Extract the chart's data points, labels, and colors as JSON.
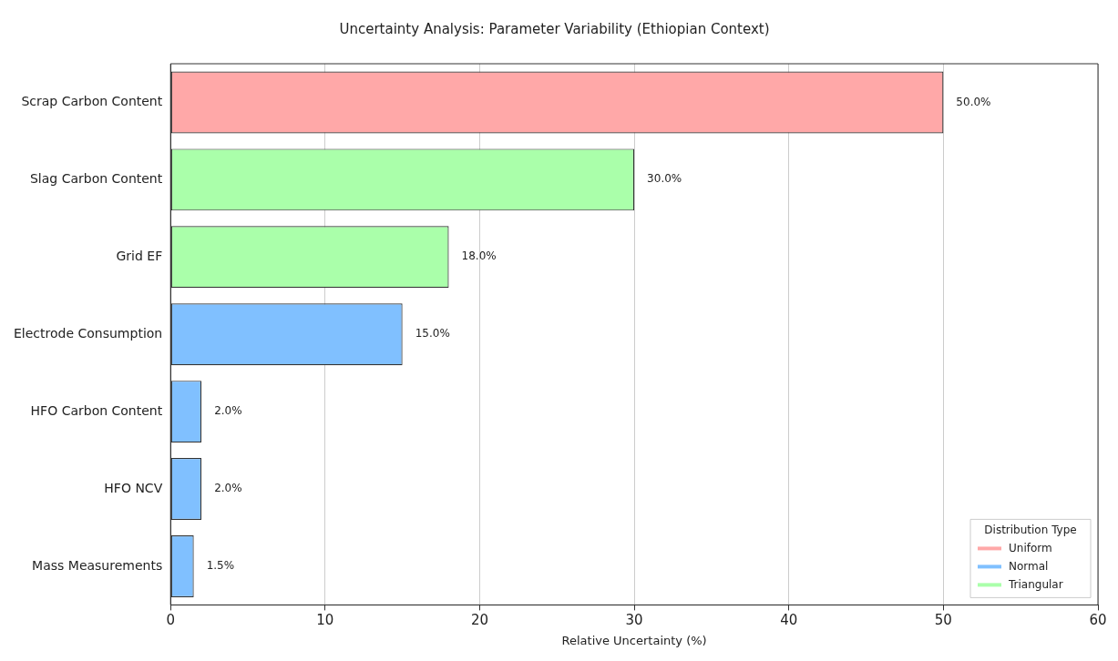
{
  "chart_data": {
    "type": "bar",
    "orientation": "horizontal",
    "stacked": true,
    "title": "Uncertainty Analysis: Parameter Variability (Ethiopian Context)",
    "xlabel": "Relative Uncertainty (%)",
    "legend_title": "Distribution Type",
    "legend": "bottom right",
    "grid": "x",
    "xlim": [
      0,
      60
    ],
    "xticks": [
      0,
      10,
      20,
      30,
      40,
      50,
      60
    ],
    "categories": [
      "Scrap Carbon Content",
      "Slag Carbon Content",
      "Grid EF",
      "Electrode Consumption",
      "HFO Carbon Content",
      "HFO NCV",
      "Mass Measurements"
    ],
    "series": [
      {
        "name": "Uniform",
        "color": "#ffa8a8",
        "values": [
          50,
          null,
          null,
          null,
          null,
          null,
          null
        ],
        "value_labels": [
          "50.0%",
          null,
          null,
          null,
          null,
          null,
          null
        ]
      },
      {
        "name": "Normal",
        "color": "#80c0ff",
        "values": [
          null,
          null,
          null,
          15,
          2,
          2,
          1.5
        ],
        "value_labels": [
          null,
          null,
          null,
          "15.0%",
          "2.0%",
          "2.0%",
          "1.5%"
        ]
      },
      {
        "name": "Triangular",
        "color": "#aaffaa",
        "values": [
          null,
          30,
          18,
          null,
          null,
          null,
          null
        ],
        "value_labels": [
          null,
          "30.0%",
          "18.0%",
          null,
          null,
          null,
          null
        ]
      }
    ]
  }
}
